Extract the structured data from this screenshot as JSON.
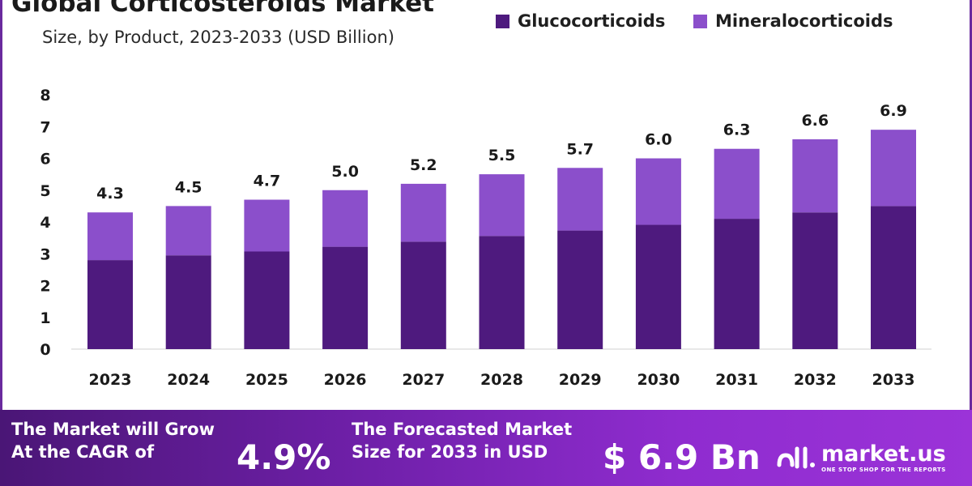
{
  "header": {
    "title": "Global Corticosteroids Market",
    "subtitle": "Size, by Product, 2023-2033 (USD Billion)"
  },
  "legend": {
    "items": [
      {
        "label": "Glucocorticoids",
        "color": "#4e1a7e"
      },
      {
        "label": "Mineralocorticoids",
        "color": "#8b4fcb"
      }
    ]
  },
  "chart_data": {
    "type": "bar",
    "stacked": true,
    "title": "Global Corticosteroids Market",
    "subtitle": "Size, by Product, 2023-2033 (USD Billion)",
    "categories": [
      "2023",
      "2024",
      "2025",
      "2026",
      "2027",
      "2028",
      "2029",
      "2030",
      "2031",
      "2032",
      "2033"
    ],
    "series": [
      {
        "name": "Glucocorticoids",
        "color": "#4e1a7e",
        "values": [
          2.8,
          2.95,
          3.07,
          3.22,
          3.38,
          3.56,
          3.73,
          3.91,
          4.1,
          4.3,
          4.5
        ]
      },
      {
        "name": "Mineralocorticoids",
        "color": "#8b4fcb",
        "values": [
          1.5,
          1.55,
          1.63,
          1.78,
          1.82,
          1.94,
          1.97,
          2.09,
          2.2,
          2.3,
          2.4
        ]
      }
    ],
    "totals": [
      4.3,
      4.5,
      4.7,
      5.0,
      5.2,
      5.5,
      5.7,
      6.0,
      6.3,
      6.6,
      6.9
    ],
    "total_labels": [
      "4.3",
      "4.5",
      "4.7",
      "5.0",
      "5.2",
      "5.5",
      "5.7",
      "6.0",
      "6.3",
      "6.6",
      "6.9"
    ],
    "yticks": [
      "0",
      "1",
      "2",
      "3",
      "4",
      "5",
      "6",
      "7",
      "8"
    ],
    "ylim": [
      0,
      8
    ],
    "grid": false,
    "legend_position": "top-right",
    "xlabel": "",
    "ylabel": ""
  },
  "banner": {
    "cagr_text_line1": "The Market will Grow",
    "cagr_text_line2": "At the CAGR of",
    "cagr_value": "4.9%",
    "forecast_text_line1": "The Forecasted Market",
    "forecast_text_line2": "Size for 2033 in USD",
    "forecast_value": "$ 6.9 Bn",
    "brand_name": "market.us",
    "brand_tagline": "ONE STOP SHOP FOR THE REPORTS",
    "brand_icon": "market-us-logo-icon"
  }
}
